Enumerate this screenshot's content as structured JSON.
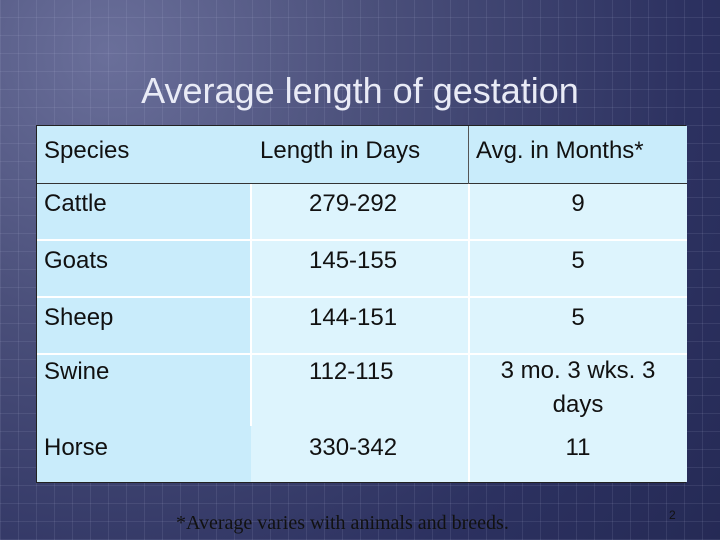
{
  "slide": {
    "title": "Average length of gestation",
    "footnote": "*Average varies with animals and breeds.",
    "page_number": "2"
  },
  "table": {
    "headers": [
      "Species",
      "Length  in Days",
      "Avg. in Months*"
    ],
    "rows": [
      {
        "species": "Cattle",
        "days": "279-292",
        "months": "9"
      },
      {
        "species": "Goats",
        "days": "145-155",
        "months": "5"
      },
      {
        "species": "Sheep",
        "days": "144-151",
        "months": "5"
      },
      {
        "species": "Swine",
        "days": "112-115",
        "months": "3 mo. 3 wks. 3 days"
      },
      {
        "species": "Horse",
        "days": "330-342",
        "months": "11"
      }
    ]
  },
  "colors": {
    "background": "#2f3461",
    "header_fill": "#c9ecfb",
    "cell_fill": "#ddf4fd",
    "title_text": "#e9ebf6"
  }
}
